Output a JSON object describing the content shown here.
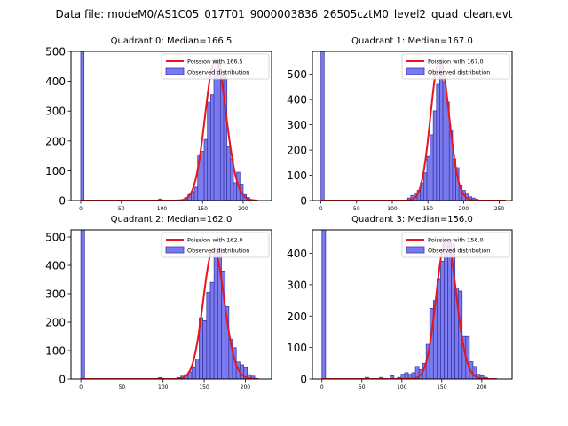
{
  "figure": {
    "suptitle": "Data file: modeM0/AS1C05_017T01_9000003836_26505cztM0_level2_quad_clean.evt",
    "colors": {
      "bar_fill": "#7b7bef",
      "bar_edge": "#3a3aa8",
      "poisson_line": "#e8151b",
      "axis": "#000000"
    }
  },
  "chart_data": [
    {
      "type": "bar",
      "title": "Quadrant 0: Median=166.5",
      "xlim": [
        -12,
        235
      ],
      "ylim": [
        0,
        500
      ],
      "xticks": [
        0,
        50,
        100,
        150,
        200
      ],
      "yticks": [
        0,
        100,
        200,
        300,
        400,
        500
      ],
      "legend": [
        "Poission with 166.5",
        "Observed distribution"
      ],
      "legend_location": "top-right",
      "poisson_mean": 166.5,
      "bin_width": 4,
      "bars": [
        {
          "x": 0,
          "height": 500
        },
        {
          "x": 96,
          "height": 5
        },
        {
          "x": 128,
          "height": 10
        },
        {
          "x": 132,
          "height": 20
        },
        {
          "x": 136,
          "height": 30
        },
        {
          "x": 140,
          "height": 45
        },
        {
          "x": 144,
          "height": 150
        },
        {
          "x": 148,
          "height": 165
        },
        {
          "x": 152,
          "height": 205
        },
        {
          "x": 156,
          "height": 330
        },
        {
          "x": 160,
          "height": 355
        },
        {
          "x": 164,
          "height": 440
        },
        {
          "x": 168,
          "height": 475
        },
        {
          "x": 172,
          "height": 420
        },
        {
          "x": 176,
          "height": 415
        },
        {
          "x": 180,
          "height": 180
        },
        {
          "x": 184,
          "height": 140
        },
        {
          "x": 188,
          "height": 60
        },
        {
          "x": 192,
          "height": 95
        },
        {
          "x": 196,
          "height": 55
        },
        {
          "x": 200,
          "height": 20
        },
        {
          "x": 204,
          "height": 10
        }
      ]
    },
    {
      "type": "bar",
      "title": "Quadrant 1: Median=167.0",
      "xlim": [
        -12,
        268
      ],
      "ylim": [
        0,
        590
      ],
      "xticks": [
        0,
        50,
        100,
        150,
        200,
        250
      ],
      "yticks": [
        0,
        100,
        200,
        300,
        400,
        500
      ],
      "legend": [
        "Poission with 167.0",
        "Observed distribution"
      ],
      "legend_location": "top-right",
      "poisson_mean": 167.0,
      "bin_width": 4.5,
      "bars": [
        {
          "x": 0,
          "height": 590
        },
        {
          "x": 121.5,
          "height": 10
        },
        {
          "x": 126,
          "height": 20
        },
        {
          "x": 130.5,
          "height": 30
        },
        {
          "x": 135,
          "height": 40
        },
        {
          "x": 139.5,
          "height": 70
        },
        {
          "x": 144,
          "height": 110
        },
        {
          "x": 148.5,
          "height": 175
        },
        {
          "x": 153,
          "height": 260
        },
        {
          "x": 157.5,
          "height": 355
        },
        {
          "x": 162,
          "height": 460
        },
        {
          "x": 166.5,
          "height": 560
        },
        {
          "x": 171,
          "height": 470
        },
        {
          "x": 175.5,
          "height": 390
        },
        {
          "x": 180,
          "height": 280
        },
        {
          "x": 184.5,
          "height": 165
        },
        {
          "x": 189,
          "height": 130
        },
        {
          "x": 193.5,
          "height": 60
        },
        {
          "x": 198,
          "height": 40
        },
        {
          "x": 202.5,
          "height": 30
        },
        {
          "x": 207,
          "height": 15
        },
        {
          "x": 211.5,
          "height": 10
        },
        {
          "x": 216,
          "height": 5
        }
      ]
    },
    {
      "type": "bar",
      "title": "Quadrant 2: Median=162.0",
      "xlim": [
        -12,
        232
      ],
      "ylim": [
        0,
        525
      ],
      "xticks": [
        0,
        50,
        100,
        150,
        200
      ],
      "yticks": [
        0,
        100,
        200,
        300,
        400,
        500
      ],
      "legend": [
        "Poission with 162.0",
        "Observed distribution"
      ],
      "legend_location": "top-right",
      "poisson_mean": 162.0,
      "bin_width": 4.5,
      "bars": [
        {
          "x": 0,
          "height": 525
        },
        {
          "x": 94.5,
          "height": 5
        },
        {
          "x": 117,
          "height": 5
        },
        {
          "x": 121.5,
          "height": 10
        },
        {
          "x": 126,
          "height": 15
        },
        {
          "x": 130.5,
          "height": 25
        },
        {
          "x": 135,
          "height": 40
        },
        {
          "x": 139.5,
          "height": 70
        },
        {
          "x": 144,
          "height": 215
        },
        {
          "x": 148.5,
          "height": 205
        },
        {
          "x": 153,
          "height": 305
        },
        {
          "x": 157.5,
          "height": 340
        },
        {
          "x": 162,
          "height": 445
        },
        {
          "x": 166.5,
          "height": 460
        },
        {
          "x": 171,
          "height": 380
        },
        {
          "x": 175.5,
          "height": 255
        },
        {
          "x": 180,
          "height": 140
        },
        {
          "x": 184.5,
          "height": 110
        },
        {
          "x": 189,
          "height": 60
        },
        {
          "x": 193.5,
          "height": 50
        },
        {
          "x": 198,
          "height": 40
        },
        {
          "x": 202.5,
          "height": 15
        },
        {
          "x": 207,
          "height": 10
        }
      ]
    },
    {
      "type": "bar",
      "title": "Quadrant 3: Median=156.0",
      "xlim": [
        -12,
        238
      ],
      "ylim": [
        0,
        475
      ],
      "xticks": [
        0,
        50,
        100,
        150,
        200
      ],
      "yticks": [
        0,
        100,
        200,
        300,
        400
      ],
      "legend": [
        "Poission with 156.0",
        "Observed distribution"
      ],
      "legend_location": "top-right",
      "poisson_mean": 156.0,
      "bin_width": 4.5,
      "bars": [
        {
          "x": 0,
          "height": 475
        },
        {
          "x": 54,
          "height": 5
        },
        {
          "x": 72,
          "height": 5
        },
        {
          "x": 85.5,
          "height": 10
        },
        {
          "x": 94.5,
          "height": 5
        },
        {
          "x": 99,
          "height": 15
        },
        {
          "x": 103.5,
          "height": 20
        },
        {
          "x": 108,
          "height": 15
        },
        {
          "x": 112.5,
          "height": 20
        },
        {
          "x": 117,
          "height": 40
        },
        {
          "x": 121.5,
          "height": 30
        },
        {
          "x": 126,
          "height": 50
        },
        {
          "x": 130.5,
          "height": 110
        },
        {
          "x": 135,
          "height": 225
        },
        {
          "x": 139.5,
          "height": 250
        },
        {
          "x": 144,
          "height": 320
        },
        {
          "x": 148.5,
          "height": 375
        },
        {
          "x": 153,
          "height": 430
        },
        {
          "x": 157.5,
          "height": 445
        },
        {
          "x": 162,
          "height": 430
        },
        {
          "x": 166.5,
          "height": 290
        },
        {
          "x": 171,
          "height": 280
        },
        {
          "x": 175.5,
          "height": 135
        },
        {
          "x": 180,
          "height": 135
        },
        {
          "x": 184.5,
          "height": 55
        },
        {
          "x": 189,
          "height": 40
        },
        {
          "x": 193.5,
          "height": 15
        },
        {
          "x": 198,
          "height": 10
        },
        {
          "x": 202.5,
          "height": 5
        }
      ]
    }
  ]
}
